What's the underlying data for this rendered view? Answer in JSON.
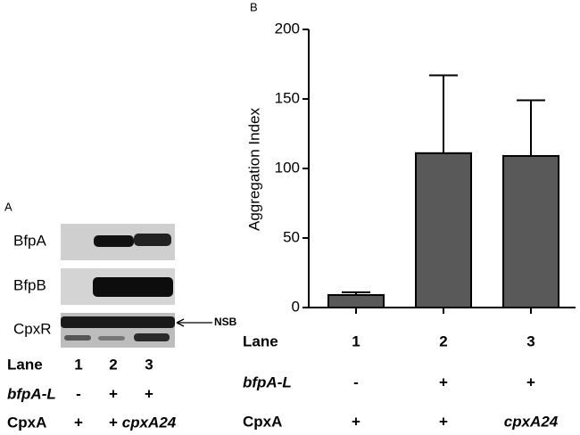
{
  "panel_a": {
    "label": "A",
    "blots": [
      "BfpA",
      "BfpB",
      "CpxR"
    ],
    "nsb": "NSB",
    "table": {
      "labels": [
        "Lane",
        "bfpA-L",
        "CpxA"
      ],
      "rows": [
        [
          "1",
          "2",
          "3"
        ],
        [
          "-",
          "+",
          "+"
        ],
        [
          "+",
          "+",
          "cpxA24"
        ]
      ]
    }
  },
  "chart_data": {
    "type": "bar",
    "panel_label": "B",
    "y_label": "Aggregation Index",
    "categories": [
      "1",
      "2",
      "3"
    ],
    "values": [
      9,
      111,
      109
    ],
    "errors": [
      2,
      56,
      40
    ],
    "color": "#595959",
    "ylim": [
      0,
      200
    ],
    "yticks": [
      0,
      50,
      100,
      150,
      200
    ],
    "x_table": {
      "labels": [
        "Lane",
        "bfpA-L",
        "CpxA"
      ],
      "rows": [
        [
          "-",
          "+",
          "+"
        ],
        [
          "+",
          "+",
          "cpxA24"
        ]
      ]
    }
  }
}
